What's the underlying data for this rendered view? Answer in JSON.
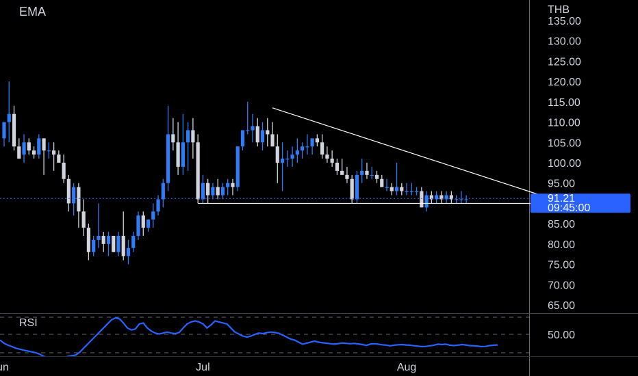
{
  "header": {
    "indicator_label": "EMA",
    "currency": "THB"
  },
  "rsi": {
    "label": "RSI",
    "level_label": "50.00",
    "values": [
      50,
      48.5,
      47.5,
      46.8,
      46,
      45.5,
      45,
      44.6,
      44.2,
      43.8,
      43,
      42,
      41.5,
      41,
      40.7,
      40.6,
      41,
      42,
      42.3,
      42.6,
      44,
      46,
      48,
      50,
      52,
      54,
      56,
      58,
      60,
      61,
      60.5,
      58.5,
      56,
      55,
      55.5,
      58,
      58.5,
      56,
      54.5,
      53.5,
      53,
      53.5,
      54,
      53.5,
      53.2,
      53.8,
      56,
      58,
      59,
      59.5,
      59,
      58,
      56,
      57.5,
      59.5,
      59,
      58.5,
      58,
      56,
      54,
      53,
      52,
      51.5,
      52,
      52.8,
      53.5,
      53.2,
      53.7,
      54,
      53.8,
      53.4,
      52.5,
      51.5,
      50.5,
      50,
      49,
      48,
      48.5,
      49,
      49.5,
      49,
      48.7,
      48.5,
      48.2,
      48,
      48.3,
      48.6,
      48.4,
      48.2,
      48.4,
      48.1,
      47.8,
      47.4,
      48,
      48.2,
      48,
      47.7,
      47.5,
      47.2,
      47.5,
      47.7,
      47.8,
      47.6,
      47.5,
      47.2,
      47,
      46.8,
      46.9,
      47.2,
      47.5,
      48,
      47.8,
      48,
      47.5,
      47.3,
      47.5,
      47.8,
      47.6,
      47.3,
      47.2,
      47,
      46.8,
      46.9,
      47.3,
      47.5,
      47.6
    ],
    "axis": {
      "min": 37,
      "max": 62
    },
    "color": "#2962ff"
  },
  "chart_data": {
    "type": "candlestick",
    "currency": "THB",
    "y_ticks": [
      "135.00",
      "130.00",
      "125.00",
      "120.00",
      "115.00",
      "110.00",
      "105.00",
      "100.00",
      "95.00",
      "90.00",
      "85.00",
      "80.00",
      "75.00",
      "70.00",
      "65.00"
    ],
    "ylim": [
      62.5,
      138.5
    ],
    "x_labels": [
      {
        "label": "Jun",
        "index": 0
      },
      {
        "label": "Jul",
        "index": 40
      },
      {
        "label": "Aug",
        "index": 81
      }
    ],
    "last_price": "91.21",
    "countdown": "09:45:00",
    "up_color": "#2f7cf6",
    "down_color": "#d1d4dc",
    "candles": [
      [
        106,
        110,
        104,
        110
      ],
      [
        110,
        120,
        105,
        112
      ],
      [
        112,
        114,
        103,
        104
      ],
      [
        104,
        106,
        101,
        101
      ],
      [
        102,
        107,
        100,
        105
      ],
      [
        105,
        106,
        102,
        103
      ],
      [
        103,
        104,
        101,
        102
      ],
      [
        102,
        107,
        101,
        106
      ],
      [
        106,
        106,
        97,
        103
      ],
      [
        103,
        105,
        101,
        103
      ],
      [
        103,
        105,
        98,
        102
      ],
      [
        102,
        103,
        100,
        100
      ],
      [
        100,
        102,
        95,
        96
      ],
      [
        96,
        97,
        88,
        90
      ],
      [
        90,
        95,
        87,
        94
      ],
      [
        94,
        95,
        84,
        88
      ],
      [
        88,
        91,
        82,
        84
      ],
      [
        84,
        85,
        76,
        78
      ],
      [
        78,
        82,
        77,
        81
      ],
      [
        81,
        90,
        79,
        82
      ],
      [
        82,
        83,
        78,
        80
      ],
      [
        80,
        83,
        77,
        82
      ],
      [
        82,
        82,
        78,
        78
      ],
      [
        78,
        83,
        77,
        82
      ],
      [
        82,
        88,
        76,
        77
      ],
      [
        77,
        81,
        75,
        79
      ],
      [
        79,
        83,
        78,
        82
      ],
      [
        82,
        88,
        81,
        87
      ],
      [
        87,
        88,
        82,
        84
      ],
      [
        84,
        86,
        83,
        86
      ],
      [
        86,
        90,
        84,
        88
      ],
      [
        88,
        92,
        87,
        91
      ],
      [
        91,
        96,
        89,
        95
      ],
      [
        95,
        114,
        93,
        107
      ],
      [
        107,
        111,
        103,
        105
      ],
      [
        105,
        110,
        97,
        99
      ],
      [
        99,
        112,
        97,
        105
      ],
      [
        105,
        110,
        98,
        108
      ],
      [
        108,
        111,
        101,
        105
      ],
      [
        105,
        107,
        90,
        91
      ],
      [
        91,
        97,
        90,
        95
      ],
      [
        95,
        96,
        90,
        92
      ],
      [
        92,
        95,
        91,
        94
      ],
      [
        94,
        96,
        91,
        92
      ],
      [
        92,
        95,
        91,
        94
      ],
      [
        94,
        96,
        92,
        95
      ],
      [
        95,
        96,
        92,
        94
      ],
      [
        94,
        104,
        93,
        104
      ],
      [
        104,
        108,
        103,
        108
      ],
      [
        108,
        115,
        107,
        108
      ],
      [
        108,
        112,
        105,
        109
      ],
      [
        109,
        111,
        104,
        105
      ],
      [
        105,
        110,
        103,
        108
      ],
      [
        108,
        111,
        104,
        107
      ],
      [
        107,
        110,
        104,
        104
      ],
      [
        104,
        107,
        95,
        100
      ],
      [
        100,
        105,
        93,
        101
      ],
      [
        101,
        103,
        99,
        101
      ],
      [
        101,
        104,
        99,
        102
      ],
      [
        102,
        106,
        100,
        103
      ],
      [
        103,
        105,
        101,
        104
      ],
      [
        104,
        107,
        102,
        104
      ],
      [
        104,
        106,
        102,
        106
      ],
      [
        106,
        107,
        104,
        105
      ],
      [
        105,
        107,
        101,
        102
      ],
      [
        102,
        104,
        100,
        101
      ],
      [
        101,
        103,
        99,
        100
      ],
      [
        100,
        101,
        97,
        98
      ],
      [
        98,
        101,
        97,
        97
      ],
      [
        97,
        99,
        95,
        96
      ],
      [
        96,
        97,
        90,
        91
      ],
      [
        91,
        98,
        90,
        97
      ],
      [
        97,
        101,
        95,
        98
      ],
      [
        98,
        100,
        96,
        97
      ],
      [
        97,
        99,
        96,
        97
      ],
      [
        97,
        98,
        95,
        96
      ],
      [
        96,
        97,
        94,
        94
      ],
      [
        94,
        96,
        93,
        94
      ],
      [
        94,
        95,
        92,
        93
      ],
      [
        93,
        100,
        92,
        94
      ],
      [
        94,
        95,
        92,
        93
      ],
      [
        93,
        95,
        92,
        93
      ],
      [
        93,
        95,
        92,
        93
      ],
      [
        93,
        94,
        92,
        93
      ],
      [
        93,
        94,
        89,
        89
      ],
      [
        89,
        93,
        88,
        92
      ],
      [
        92,
        93,
        90,
        91
      ],
      [
        91,
        93,
        90,
        92
      ],
      [
        92,
        93,
        90,
        91
      ],
      [
        91,
        93,
        90,
        92
      ],
      [
        92,
        93,
        90,
        91
      ],
      [
        91,
        92,
        90,
        91
      ],
      [
        91,
        93,
        90,
        91
      ],
      [
        91,
        92,
        90,
        91
      ]
    ],
    "drawn_lines": [
      {
        "name": "triangle-upper-trendline",
        "from": [
          54,
          113.5
        ],
        "to": [
          113,
          90
        ]
      },
      {
        "name": "triangle-lower-support",
        "from": [
          39,
          90
        ],
        "to": [
          113,
          90
        ]
      }
    ]
  }
}
